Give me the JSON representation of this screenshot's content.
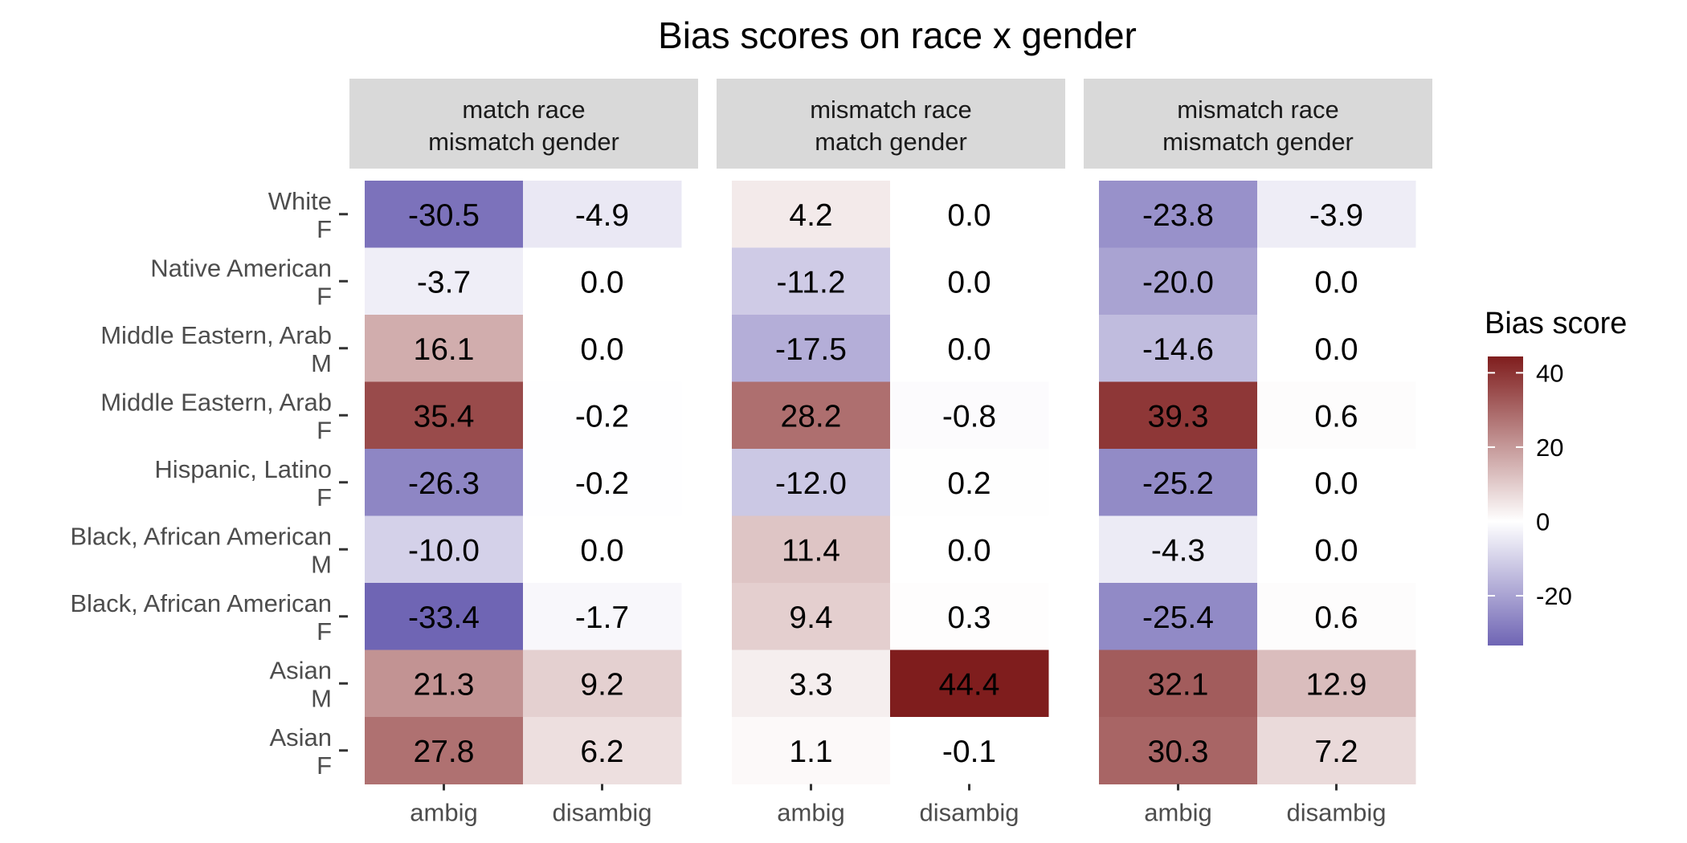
{
  "chart_data": {
    "type": "heatmap",
    "title": "Bias scores on race x gender",
    "facets": [
      {
        "label_lines": [
          "match race",
          "mismatch gender"
        ]
      },
      {
        "label_lines": [
          "mismatch race",
          "match gender"
        ]
      },
      {
        "label_lines": [
          "mismatch race",
          "mismatch gender"
        ]
      }
    ],
    "rows": [
      [
        "White",
        "F"
      ],
      [
        "Native American",
        "F"
      ],
      [
        "Middle Eastern, Arab",
        "M"
      ],
      [
        "Middle Eastern, Arab",
        "F"
      ],
      [
        "Hispanic, Latino",
        "F"
      ],
      [
        "Black, African American",
        "M"
      ],
      [
        "Black, African American",
        "F"
      ],
      [
        "Asian",
        "M"
      ],
      [
        "Asian",
        "F"
      ]
    ],
    "columns": [
      "ambig",
      "disambig"
    ],
    "values": [
      [
        [
          -30.5,
          -4.9
        ],
        [
          -3.7,
          0.0
        ],
        [
          16.1,
          0.0
        ],
        [
          35.4,
          -0.2
        ],
        [
          -26.3,
          -0.2
        ],
        [
          -10.0,
          0.0
        ],
        [
          -33.4,
          -1.7
        ],
        [
          21.3,
          9.2
        ],
        [
          27.8,
          6.2
        ]
      ],
      [
        [
          4.2,
          0.0
        ],
        [
          -11.2,
          0.0
        ],
        [
          -17.5,
          0.0
        ],
        [
          28.2,
          -0.8
        ],
        [
          -12.0,
          0.2
        ],
        [
          11.4,
          0.0
        ],
        [
          9.4,
          0.3
        ],
        [
          3.3,
          44.4
        ],
        [
          1.1,
          -0.1
        ]
      ],
      [
        [
          -23.8,
          -3.9
        ],
        [
          -20.0,
          0.0
        ],
        [
          -14.6,
          0.0
        ],
        [
          39.3,
          0.6
        ],
        [
          -25.2,
          0.0
        ],
        [
          -4.3,
          0.0
        ],
        [
          -25.4,
          0.6
        ],
        [
          32.1,
          12.9
        ],
        [
          30.3,
          7.2
        ]
      ]
    ],
    "legend": {
      "title": "Bias score",
      "position": "right",
      "ticks": [
        40,
        20,
        0,
        -20
      ],
      "range": [
        -33.4,
        44.4
      ],
      "colors": {
        "low": "#6f65b4",
        "mid": "#ffffff",
        "high": "#7f1d1d"
      }
    },
    "grid": false
  }
}
